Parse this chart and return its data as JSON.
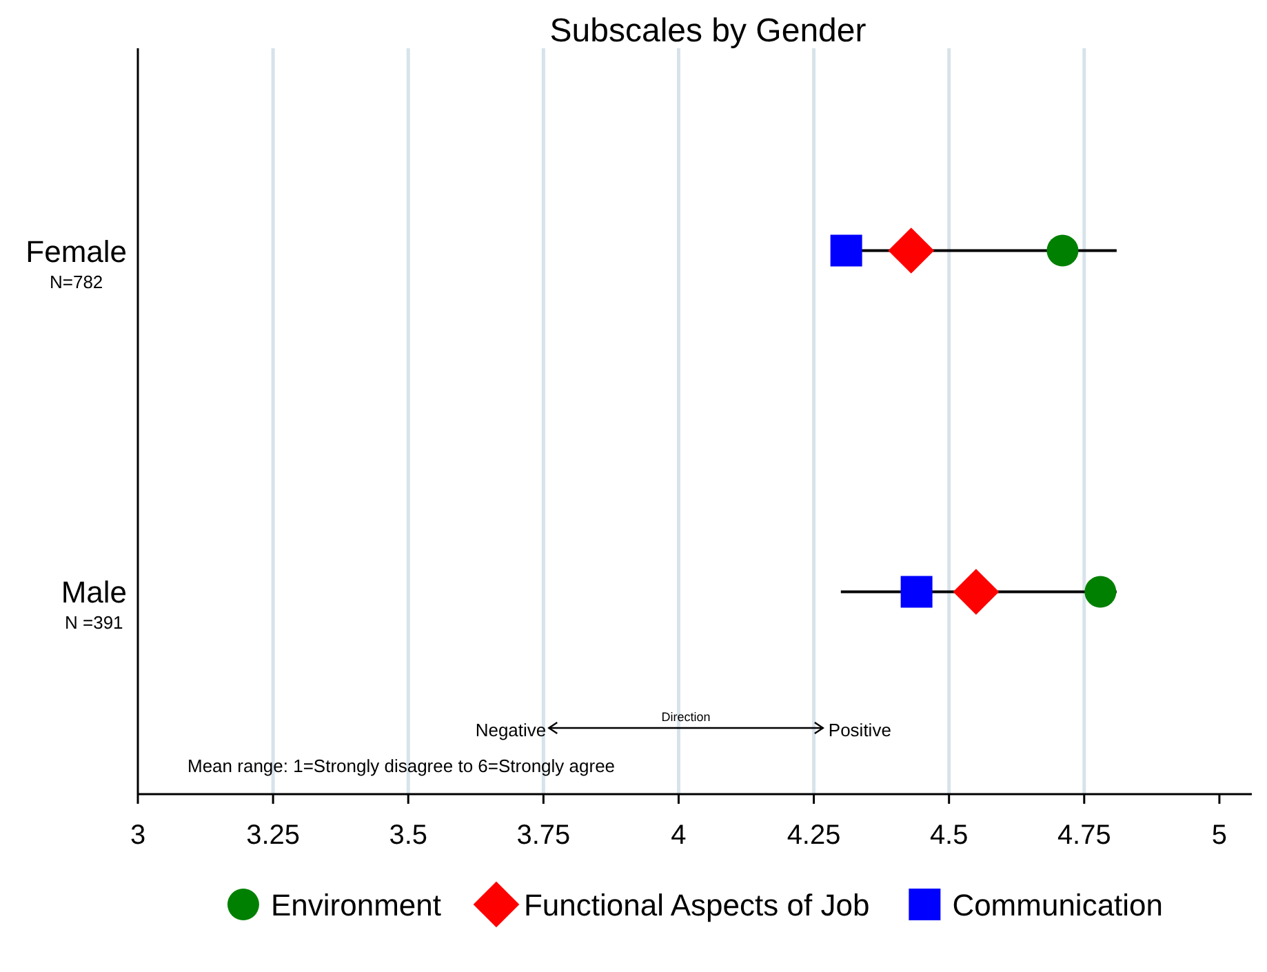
{
  "chart_data": {
    "type": "scatter",
    "title": "Subscales by Gender",
    "orientation": "horizontal",
    "categories": [
      "Female",
      "Male"
    ],
    "xlim": [
      3,
      5.06
    ],
    "xticks": [
      3,
      3.25,
      3.5,
      3.75,
      4,
      4.25,
      4.5,
      4.75,
      5
    ],
    "grid": "x",
    "legend": "bottom",
    "series": [
      {
        "type": "bar",
        "color": "#000000",
        "base": [
          4.31,
          4.3
        ],
        "values": [
          0.5,
          0.51
        ]
      },
      {
        "name": "Environment",
        "color": "#008000",
        "marker": "circle",
        "values": [
          4.71,
          4.78
        ]
      },
      {
        "name": "Functional Aspects of Job",
        "color": "#ff0000",
        "marker": "diamond",
        "values": [
          4.43,
          4.55
        ]
      },
      {
        "name": "Communication",
        "color": "#0000ff",
        "marker": "square",
        "values": [
          4.31,
          4.44
        ]
      }
    ],
    "annotations": [
      "N=782",
      "N =391",
      "Negative",
      "Direction",
      "Positive",
      "Mean range: 1=Strongly disagree to 6=Strongly agree"
    ]
  }
}
